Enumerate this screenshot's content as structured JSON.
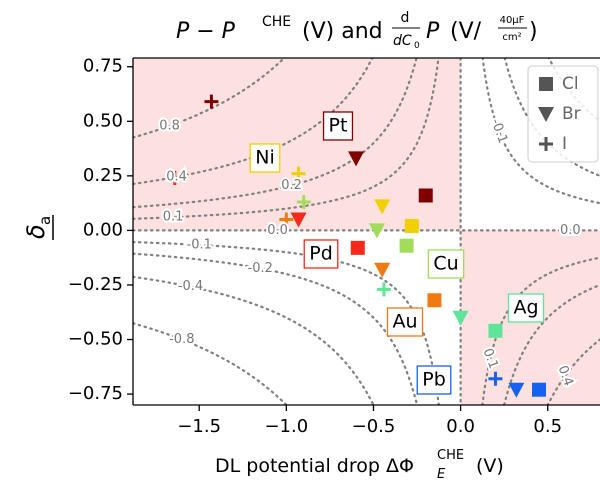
{
  "chart_data": {
    "type": "scatter",
    "title": {
      "a": "P − P",
      "a_sup": "CHE",
      "b": "(V) and",
      "d_num": "d",
      "d_den": "dC",
      "d_den_sub": "0",
      "c": "P",
      "unit_open": "(V/",
      "unit_num": "40μF",
      "unit_den": "cm²",
      "unit_close": ")"
    },
    "x_label": {
      "main": "DL potential drop ΔΦ",
      "sub": "E",
      "sup": "CHE",
      "unit": "(V)"
    },
    "y_label": {
      "main": "δ",
      "sub": "a"
    },
    "xlim": [
      -1.88,
      0.8
    ],
    "ylim": [
      -0.8,
      0.79
    ],
    "xticks": [
      {
        "value": -1.5,
        "label": "−1.5"
      },
      {
        "value": -1.0,
        "label": "−1.0"
      },
      {
        "value": -0.5,
        "label": "−0.5"
      },
      {
        "value": 0.0,
        "label": "0.0"
      },
      {
        "value": 0.5,
        "label": "0.5"
      }
    ],
    "yticks": [
      {
        "value": -0.75,
        "label": "−0.75"
      },
      {
        "value": -0.5,
        "label": "−0.50"
      },
      {
        "value": -0.25,
        "label": "−0.25"
      },
      {
        "value": 0.0,
        "label": "0.00"
      },
      {
        "value": 0.25,
        "label": "0.25"
      },
      {
        "value": 0.5,
        "label": "0.50"
      },
      {
        "value": 0.75,
        "label": "0.75"
      }
    ],
    "legend": "upper right",
    "contour_levels": [
      {
        "value": 0.8,
        "label": "0.8"
      },
      {
        "value": 0.4,
        "label": "0.4"
      },
      {
        "value": 0.2,
        "label": "0.2"
      },
      {
        "value": 0.1,
        "label": "0.1"
      },
      {
        "value": 0.0,
        "label": "0.0"
      },
      {
        "value": -0.1,
        "label": "-0.1"
      },
      {
        "value": -0.2,
        "label": "-0.2"
      },
      {
        "value": -0.4,
        "label": "-0.4"
      },
      {
        "value": -0.8,
        "label": "-0.8"
      }
    ],
    "contour_levels_right": [
      {
        "value": -0.1,
        "label": "-0.1"
      },
      {
        "value": 0.0,
        "label": "0.0"
      },
      {
        "value": 0.1,
        "label": "0.1"
      },
      {
        "value": 0.4,
        "label": "0.4"
      }
    ],
    "metals": [
      {
        "name": "Pt",
        "color": "#800000"
      },
      {
        "name": "Ni",
        "color": "#f2d000"
      },
      {
        "name": "Pd",
        "color": "#f52a1a"
      },
      {
        "name": "Cu",
        "color": "#a3dc5a"
      },
      {
        "name": "Au",
        "color": "#f07a12"
      },
      {
        "name": "Ag",
        "color": "#5ee59a"
      },
      {
        "name": "Pb",
        "color": "#1462ef"
      }
    ],
    "series": [
      {
        "name": "Cl",
        "marker": "square",
        "color": "#555555",
        "x": [
          -0.2,
          -0.28,
          -0.59,
          -0.31,
          -0.15,
          0.2,
          0.45
        ],
        "values": [
          0.16,
          0.02,
          -0.08,
          -0.07,
          -0.32,
          -0.46,
          -0.73
        ]
      },
      {
        "name": "Br",
        "marker": "triangle-down",
        "color": "#555555",
        "x": [
          -0.6,
          -0.45,
          -0.93,
          -0.48,
          -0.45,
          0.0,
          0.32
        ],
        "values": [
          0.33,
          0.11,
          0.05,
          0.0,
          -0.18,
          -0.4,
          -0.73
        ]
      },
      {
        "name": "I",
        "marker": "plus",
        "color": "#555555",
        "x": [
          -1.43,
          -0.93,
          -1.64,
          -0.9,
          -1.0,
          -0.44,
          0.2
        ],
        "values": [
          0.59,
          0.26,
          0.24,
          0.13,
          0.05,
          -0.27,
          -0.68
        ]
      }
    ]
  }
}
